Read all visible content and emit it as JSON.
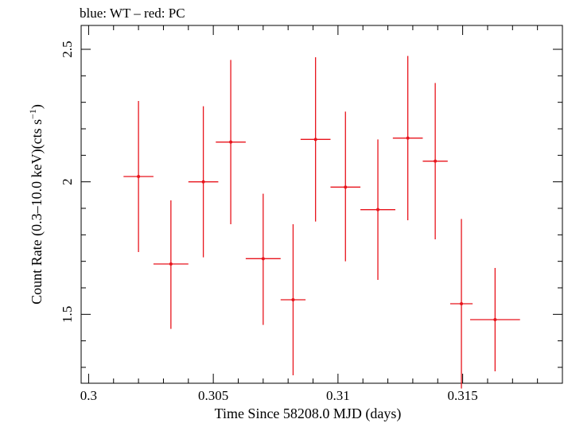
{
  "chart_data": {
    "type": "scatter",
    "title": "blue: WT – red: PC",
    "xlabel": "Time Since 58208.0 MJD (days)",
    "ylabel_main": "Count Rate (0.3–10.0 keV)(cts s",
    "ylabel_sup": "−1",
    "ylabel_close": ")",
    "xlim": [
      0.2997,
      0.319
    ],
    "ylim": [
      1.24,
      2.59
    ],
    "x_ticks": [
      0.3,
      0.305,
      0.31,
      0.315
    ],
    "x_tick_labels": [
      "0.3",
      "0.305",
      "0.31",
      "0.315"
    ],
    "y_ticks": [
      1.5,
      2,
      2.5
    ],
    "y_tick_labels": [
      "1.5",
      "2",
      "2.5"
    ],
    "grid": false,
    "series": [
      {
        "color": "#e8141c",
        "points": [
          {
            "x": 0.302,
            "xerr": 0.0006,
            "y": 2.02,
            "yerr_lo": 0.285,
            "yerr_hi": 0.285
          },
          {
            "x": 0.3033,
            "xerr": 0.0007,
            "y": 1.69,
            "yerr_lo": 0.245,
            "yerr_hi": 0.24
          },
          {
            "x": 0.3046,
            "xerr": 0.0006,
            "y": 2.0,
            "yerr_lo": 0.285,
            "yerr_hi": 0.285
          },
          {
            "x": 0.3057,
            "xerr": 0.0006,
            "y": 2.15,
            "yerr_lo": 0.31,
            "yerr_hi": 0.31
          },
          {
            "x": 0.307,
            "xerr": 0.0007,
            "y": 1.71,
            "yerr_lo": 0.25,
            "yerr_hi": 0.245
          },
          {
            "x": 0.3082,
            "xerr": 0.0005,
            "y": 1.555,
            "yerr_lo": 0.285,
            "yerr_hi": 0.285
          },
          {
            "x": 0.3091,
            "xerr": 0.0006,
            "y": 2.16,
            "yerr_lo": 0.31,
            "yerr_hi": 0.31
          },
          {
            "x": 0.3103,
            "xerr": 0.0006,
            "y": 1.98,
            "yerr_lo": 0.28,
            "yerr_hi": 0.285
          },
          {
            "x": 0.3116,
            "xerr": 0.0007,
            "y": 1.895,
            "yerr_lo": 0.265,
            "yerr_hi": 0.265
          },
          {
            "x": 0.3128,
            "xerr": 0.0006,
            "y": 2.165,
            "yerr_lo": 0.31,
            "yerr_hi": 0.31
          },
          {
            "x": 0.3139,
            "xerr": 0.0005,
            "y": 2.078,
            "yerr_lo": 0.295,
            "yerr_hi": 0.295
          },
          {
            "x": 0.31495,
            "xerr": 0.00045,
            "y": 1.54,
            "yerr_lo": 0.32,
            "yerr_hi": 0.32
          },
          {
            "x": 0.3163,
            "xerr": 0.001,
            "y": 1.48,
            "yerr_lo": 0.195,
            "yerr_hi": 0.195
          }
        ]
      }
    ]
  }
}
